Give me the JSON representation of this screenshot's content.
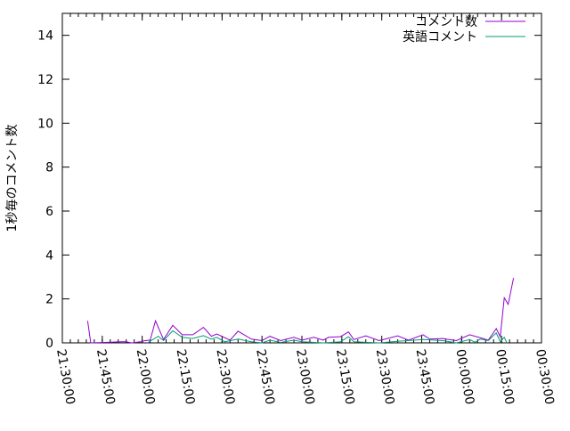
{
  "chart_data": {
    "type": "line",
    "title": "",
    "xlabel": "",
    "ylabel": "1秒毎のコメント数",
    "xlim": [
      "21:30:00",
      "00:30:00"
    ],
    "ylim": [
      0,
      15
    ],
    "x_ticks": [
      "21:30:00",
      "21:45:00",
      "22:00:00",
      "22:15:00",
      "22:30:00",
      "22:45:00",
      "23:00:00",
      "23:15:00",
      "23:30:00",
      "23:45:00",
      "00:00:00",
      "00:15:00",
      "00:30:00"
    ],
    "y_ticks": [
      "0",
      "2",
      "4",
      "6",
      "8",
      "10",
      "12",
      "14"
    ],
    "grid": false,
    "legend_position": "top-right",
    "series": [
      {
        "name": "コメント数",
        "color": "#9400d3",
        "points": [
          [
            "21:39:30",
            1.0
          ],
          [
            "21:40:40",
            0.0
          ],
          [
            "21:52:00",
            0.05
          ],
          [
            "21:54:00",
            0.05
          ],
          [
            "21:56:00",
            0.0
          ],
          [
            "21:59:30",
            0.05
          ],
          [
            "22:01:00",
            0.1
          ],
          [
            "22:03:00",
            0.12
          ],
          [
            "22:05:00",
            1.0
          ],
          [
            "22:08:00",
            0.15
          ],
          [
            "22:11:30",
            0.8
          ],
          [
            "22:15:00",
            0.37
          ],
          [
            "22:19:00",
            0.37
          ],
          [
            "22:23:00",
            0.7
          ],
          [
            "22:26:00",
            0.3
          ],
          [
            "22:28:00",
            0.4
          ],
          [
            "22:33:00",
            0.12
          ],
          [
            "22:36:00",
            0.53
          ],
          [
            "22:41:00",
            0.17
          ],
          [
            "22:45:00",
            0.1
          ],
          [
            "22:48:00",
            0.3
          ],
          [
            "22:52:00",
            0.1
          ],
          [
            "22:57:00",
            0.25
          ],
          [
            "23:00:00",
            0.12
          ],
          [
            "23:04:30",
            0.25
          ],
          [
            "23:08:00",
            0.12
          ],
          [
            "23:10:00",
            0.25
          ],
          [
            "23:14:30",
            0.28
          ],
          [
            "23:17:30",
            0.5
          ],
          [
            "23:19:30",
            0.15
          ],
          [
            "23:24:00",
            0.32
          ],
          [
            "23:29:00",
            0.1
          ],
          [
            "23:36:00",
            0.32
          ],
          [
            "23:40:00",
            0.12
          ],
          [
            "23:45:30",
            0.37
          ],
          [
            "23:48:00",
            0.17
          ],
          [
            "23:53:00",
            0.2
          ],
          [
            "23:58:00",
            0.1
          ],
          [
            "00:03:00",
            0.37
          ],
          [
            "00:08:00",
            0.2
          ],
          [
            "00:10:00",
            0.12
          ],
          [
            "00:13:00",
            0.65
          ],
          [
            "00:14:30",
            0.28
          ],
          [
            "00:16:00",
            2.05
          ],
          [
            "00:17:30",
            1.75
          ],
          [
            "00:19:30",
            2.95
          ]
        ]
      },
      {
        "name": "英語コメント",
        "color": "#009e73",
        "points": [
          [
            "22:02:00",
            0.0
          ],
          [
            "22:06:00",
            0.3
          ],
          [
            "22:08:00",
            0.1
          ],
          [
            "22:11:30",
            0.55
          ],
          [
            "22:15:00",
            0.25
          ],
          [
            "22:19:00",
            0.2
          ],
          [
            "22:23:00",
            0.33
          ],
          [
            "22:26:00",
            0.17
          ],
          [
            "22:28:00",
            0.25
          ],
          [
            "22:31:00",
            0.05
          ],
          [
            "22:36:00",
            0.17
          ],
          [
            "22:41:00",
            0.05
          ],
          [
            "22:45:00",
            0.0
          ],
          [
            "22:48:00",
            0.12
          ],
          [
            "22:52:00",
            0.02
          ],
          [
            "22:57:00",
            0.12
          ],
          [
            "23:00:00",
            0.05
          ],
          [
            "23:08:00",
            0.0
          ],
          [
            "23:14:30",
            0.05
          ],
          [
            "23:17:30",
            0.28
          ],
          [
            "23:19:30",
            0.05
          ],
          [
            "23:29:00",
            0.0
          ],
          [
            "23:36:00",
            0.07
          ],
          [
            "23:45:30",
            0.15
          ],
          [
            "23:53:00",
            0.1
          ],
          [
            "23:58:00",
            0.0
          ],
          [
            "00:03:00",
            0.15
          ],
          [
            "00:05:00",
            0.03
          ],
          [
            "00:07:00",
            0.17
          ],
          [
            "00:10:00",
            0.1
          ],
          [
            "00:13:00",
            0.45
          ],
          [
            "00:14:30",
            0.05
          ],
          [
            "00:16:00",
            0.25
          ],
          [
            "00:17:00",
            0.0
          ]
        ]
      }
    ]
  }
}
